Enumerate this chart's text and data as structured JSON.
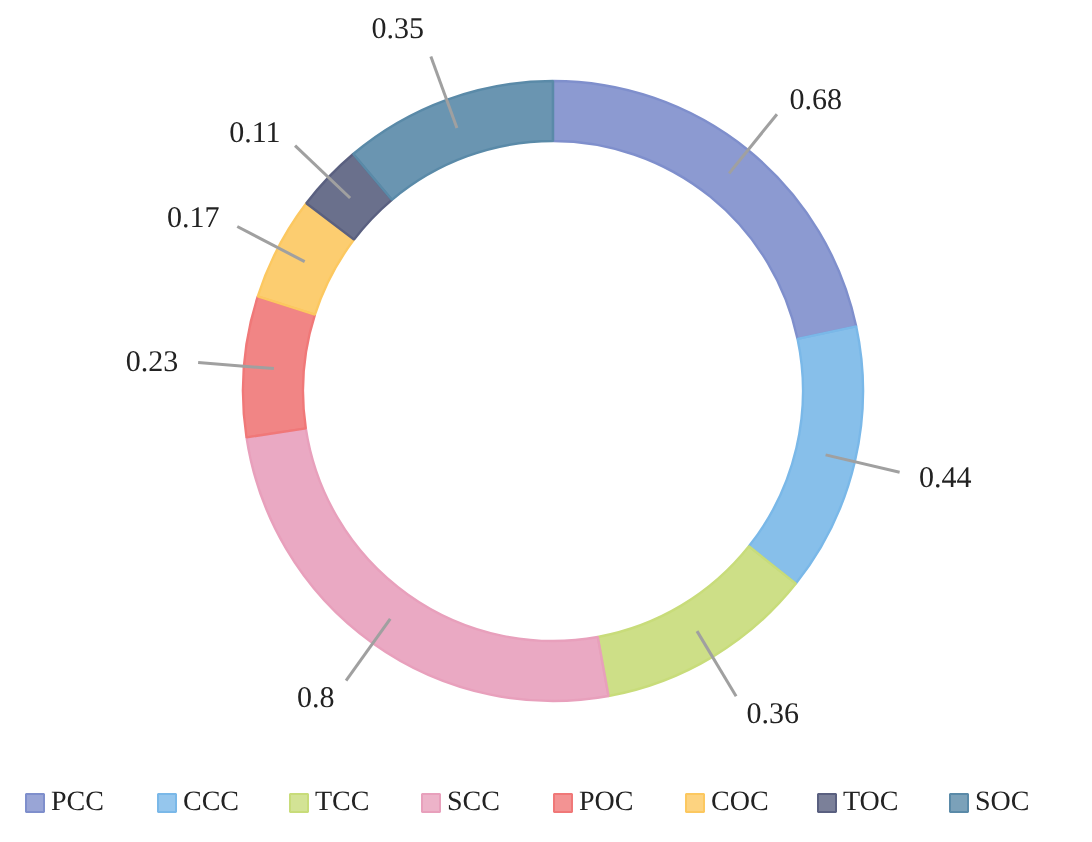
{
  "chart_data": {
    "type": "donut",
    "categories": [
      "PCC",
      "CCC",
      "TCC",
      "SCC",
      "POC",
      "COC",
      "TOC",
      "SOC"
    ],
    "values": [
      0.68,
      0.44,
      0.36,
      0.8,
      0.23,
      0.17,
      0.11,
      0.35
    ],
    "colors": [
      "#7f8fcc",
      "#7ab8e8",
      "#c8dc7a",
      "#e8a0bc",
      "#f07878",
      "#fcc860",
      "#5a6080",
      "#5a8aa8"
    ],
    "data_labels": true,
    "legend": "bottom"
  }
}
